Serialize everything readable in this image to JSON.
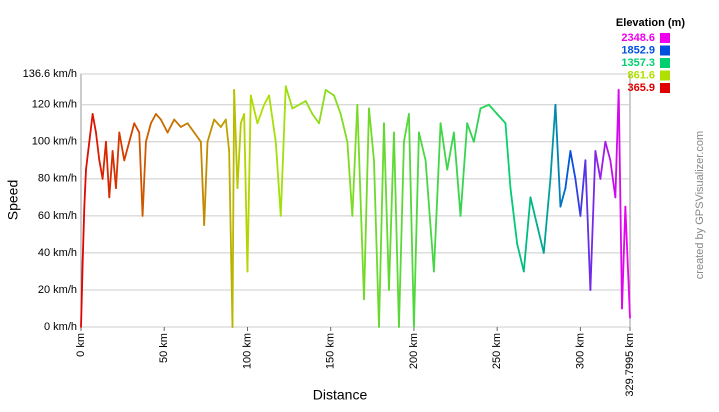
{
  "chart_data": {
    "type": "line",
    "xlabel": "Distance",
    "ylabel": "Speed",
    "legend_title": "Elevation (m)",
    "legend": [
      {
        "label": 2348.6,
        "color": "#ee00ee"
      },
      {
        "label": 1852.9,
        "color": "#0050e0"
      },
      {
        "label": 1357.3,
        "color": "#00d070"
      },
      {
        "label": 861.6,
        "color": "#b0e000"
      },
      {
        "label": 365.9,
        "color": "#e00000"
      }
    ],
    "credit": "created by GPSVisualizer.com",
    "xlim": [
      0,
      329.7995
    ],
    "ylim": [
      0,
      136.6
    ],
    "xticks": [
      {
        "value": 0,
        "label": "0 km"
      },
      {
        "value": 50,
        "label": "50 km"
      },
      {
        "value": 100,
        "label": "100 km"
      },
      {
        "value": 150,
        "label": "150 km"
      },
      {
        "value": 200,
        "label": "200 km"
      },
      {
        "value": 250,
        "label": "250 km"
      },
      {
        "value": 300,
        "label": "300 km"
      },
      {
        "value": 329.7995,
        "label": "329.7995 km"
      }
    ],
    "yticks": [
      {
        "value": 0,
        "label": "0 km/h"
      },
      {
        "value": 20,
        "label": "20 km/h"
      },
      {
        "value": 40,
        "label": "40 km/h"
      },
      {
        "value": 60,
        "label": "60 km/h"
      },
      {
        "value": 80,
        "label": "80 km/h"
      },
      {
        "value": 100,
        "label": "100 km/h"
      },
      {
        "value": 120,
        "label": "120 km/h"
      },
      {
        "value": 136.6,
        "label": "136.6 km/h"
      }
    ],
    "grid": true,
    "series": [
      {
        "x": [
          0,
          1,
          2,
          3,
          5,
          7,
          9,
          11,
          13,
          15,
          17,
          19,
          21,
          23,
          26,
          29,
          32,
          35,
          37,
          39,
          42,
          45,
          48,
          52,
          56,
          60,
          64,
          68,
          72,
          74,
          76,
          80,
          84,
          87,
          89,
          91,
          92,
          94,
          96,
          98,
          100,
          102,
          106,
          110,
          113,
          117,
          120,
          123,
          127,
          131,
          135,
          139,
          143,
          147,
          152,
          156,
          160,
          163,
          166,
          170,
          173,
          176,
          179,
          182,
          185,
          188,
          191,
          194,
          197,
          200,
          203,
          207,
          212,
          216,
          220,
          224,
          228,
          232,
          236,
          240,
          245,
          250,
          255,
          258,
          262,
          266,
          270,
          274,
          278,
          282,
          285,
          288,
          291,
          294,
          297,
          300,
          303,
          306,
          309,
          312,
          315,
          318,
          321,
          323,
          325,
          327,
          329.7995
        ],
        "values": [
          0,
          35,
          65,
          85,
          100,
          115,
          105,
          90,
          80,
          100,
          70,
          95,
          75,
          105,
          90,
          100,
          110,
          105,
          60,
          100,
          110,
          115,
          112,
          105,
          112,
          108,
          110,
          105,
          100,
          55,
          100,
          112,
          108,
          112,
          95,
          0,
          128,
          75,
          110,
          115,
          30,
          125,
          110,
          120,
          125,
          100,
          60,
          130,
          118,
          120,
          122,
          115,
          110,
          128,
          125,
          115,
          100,
          60,
          120,
          15,
          118,
          90,
          0,
          110,
          20,
          105,
          0,
          100,
          115,
          0,
          105,
          90,
          30,
          110,
          85,
          105,
          60,
          110,
          100,
          118,
          120,
          115,
          110,
          75,
          45,
          30,
          70,
          55,
          40,
          80,
          120,
          65,
          75,
          95,
          80,
          60,
          90,
          20,
          95,
          80,
          100,
          90,
          70,
          128,
          10,
          65,
          5
        ],
        "elevation": [
          370,
          375,
          380,
          390,
          400,
          410,
          420,
          430,
          440,
          450,
          460,
          470,
          480,
          490,
          500,
          510,
          520,
          540,
          560,
          570,
          580,
          590,
          600,
          610,
          620,
          630,
          640,
          650,
          660,
          670,
          680,
          690,
          700,
          720,
          740,
          760,
          780,
          800,
          820,
          830,
          840,
          850,
          860,
          870,
          880,
          890,
          900,
          910,
          920,
          930,
          940,
          950,
          960,
          970,
          980,
          990,
          1000,
          1010,
          1020,
          1030,
          1040,
          1050,
          1060,
          1070,
          1080,
          1090,
          1100,
          1110,
          1120,
          1130,
          1140,
          1150,
          1160,
          1170,
          1180,
          1190,
          1200,
          1210,
          1220,
          1230,
          1250,
          1280,
          1320,
          1360,
          1400,
          1420,
          1450,
          1480,
          1510,
          1560,
          1620,
          1700,
          1780,
          1850,
          1920,
          1980,
          2030,
          2080,
          2120,
          2160,
          2200,
          2240,
          2270,
          2290,
          2310,
          2330,
          2348.6
        ]
      }
    ]
  }
}
